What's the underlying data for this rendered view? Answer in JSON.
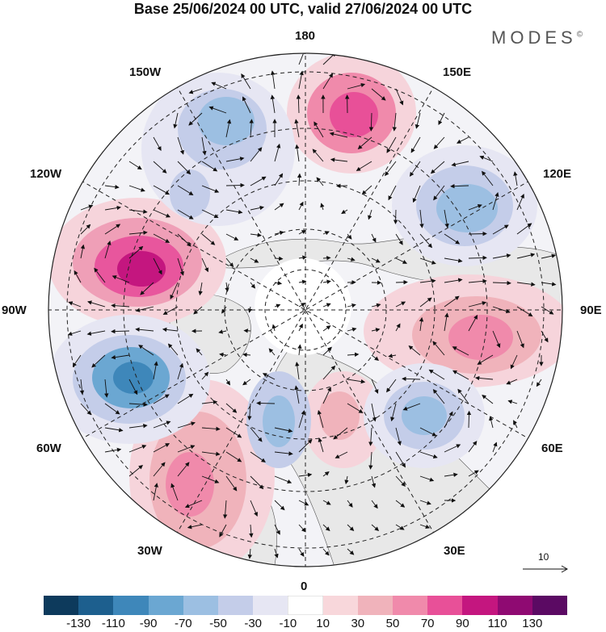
{
  "title": "Base 25/06/2024 00 UTC, valid 27/06/2024 00 UTC",
  "brand": "MODES",
  "brand_mark": "©",
  "map": {
    "type": "polar stereographic contour map with wind vectors",
    "lon_labels": {
      "top": "180",
      "top_left": "150W",
      "top_right": "150E",
      "left_upper": "120W",
      "right_upper": "120E",
      "left": "90W",
      "right": "90E",
      "left_lower": "60W",
      "right_lower": "60E",
      "bottom_left": "30W",
      "bottom_right": "30E",
      "bottom": "0"
    },
    "reference_vector": "10"
  },
  "colorbar": {
    "colors": [
      "#0d3a5c",
      "#1d5f8e",
      "#3e87ba",
      "#6ba7d2",
      "#9cbfe2",
      "#c4cde9",
      "#e6e6f3",
      "#ffffff",
      "#f8d7db",
      "#f0b3bb",
      "#f08aab",
      "#e85098",
      "#c4167f",
      "#8f0a72",
      "#5b0a63"
    ],
    "ticks": [
      "-130",
      "-110",
      "-90",
      "-70",
      "-50",
      "-30",
      "-10",
      "10",
      "30",
      "50",
      "70",
      "90",
      "110",
      "130"
    ]
  }
}
